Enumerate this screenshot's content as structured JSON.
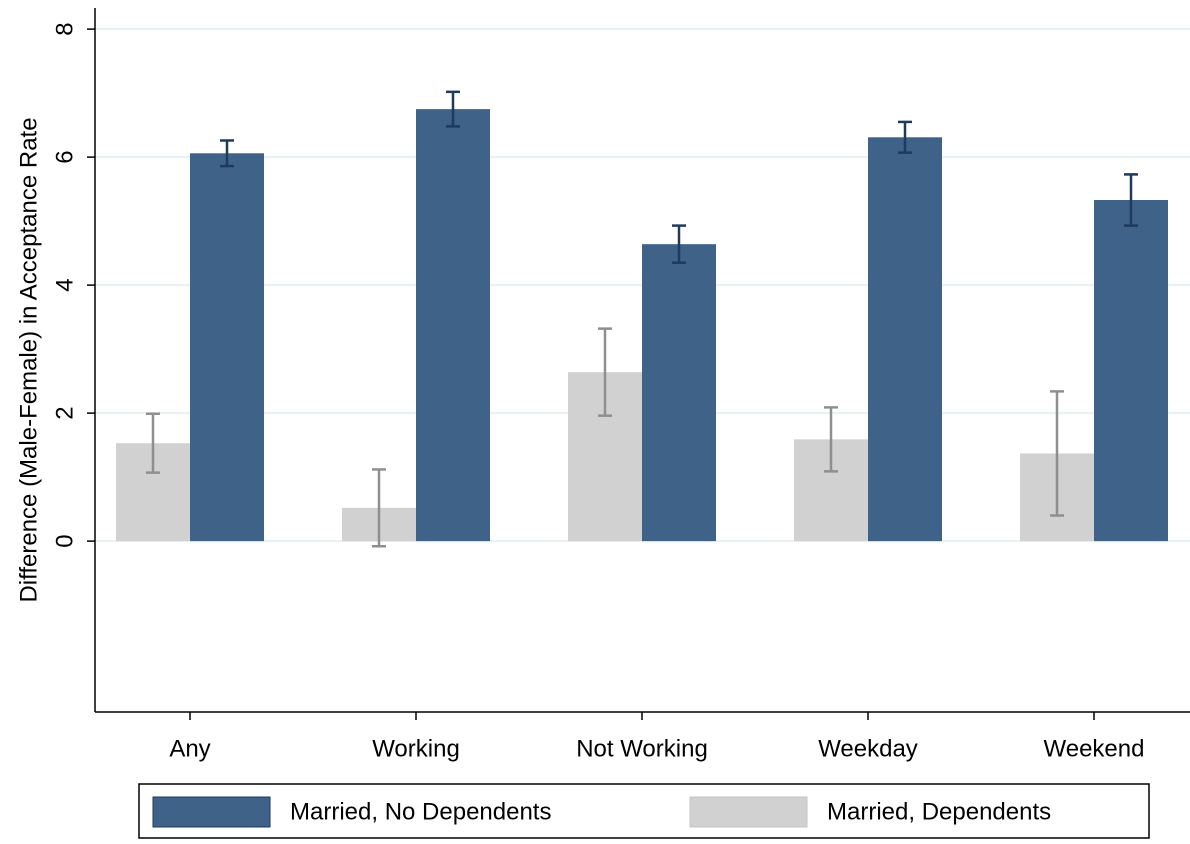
{
  "chart_data": {
    "type": "bar",
    "y_label": "Difference (Male-Female) in Acceptance Rate",
    "categories": [
      "Any",
      "Working",
      "Not Working",
      "Weekday",
      "Weekend"
    ],
    "series": [
      {
        "name": "Married, No Dependents",
        "color": "#3f6289",
        "error_color": "#1e3a5c",
        "values": [
          6.06,
          6.75,
          4.64,
          6.31,
          5.33
        ],
        "errors": [
          0.2,
          0.27,
          0.29,
          0.24,
          0.4
        ]
      },
      {
        "name": "Married, Dependents",
        "color": "#d1d1d1",
        "error_color": "#8f8f8f",
        "values": [
          1.53,
          0.52,
          2.64,
          1.59,
          1.37
        ],
        "errors": [
          0.46,
          0.6,
          0.68,
          0.5,
          0.97
        ]
      }
    ],
    "ylim": [
      -2.67,
      8.33
    ],
    "yticks": [
      0,
      2,
      4,
      6,
      8
    ],
    "grid": true,
    "legend": "bottom"
  }
}
